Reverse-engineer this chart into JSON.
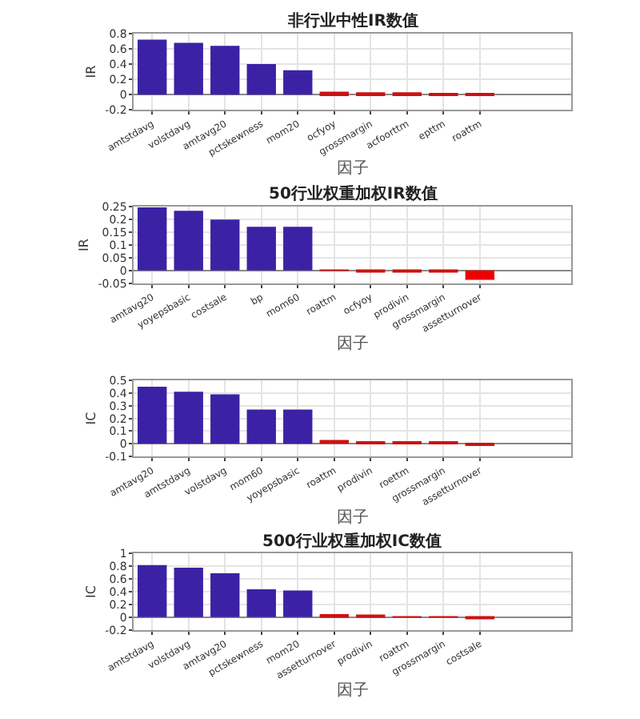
{
  "chart_data": [
    {
      "type": "bar",
      "title": "非行业中性IR数值",
      "xlabel": "因子",
      "ylabel": "IR",
      "categories": [
        "amtstdavg",
        "volstdavg",
        "amtavg20",
        "pctskewness",
        "mom20",
        "ocfyoy",
        "grossmargin",
        "acfoorttm",
        "epttm",
        "roattm"
      ],
      "values": [
        0.72,
        0.68,
        0.64,
        0.4,
        0.32,
        0.04,
        0.03,
        0.03,
        0.02,
        0.01
      ],
      "colors": [
        "#3b22a5",
        "#3b22a5",
        "#3b22a5",
        "#3b22a5",
        "#3b22a5",
        "#cc1111",
        "#cc1111",
        "#cc1111",
        "#cc1111",
        "#cc1111"
      ],
      "ylim": [
        -0.2,
        0.8
      ],
      "yticks": [
        -0.2,
        0,
        0.2,
        0.4,
        0.6,
        0.8
      ],
      "grid": true
    },
    {
      "type": "bar",
      "title": "50行业权重加权IR数值",
      "xlabel": "因子",
      "ylabel": "IR",
      "categories": [
        "amtavg20",
        "yoyepsbasic",
        "costsale",
        "bp",
        "mom60",
        "roattm",
        "ocfyoy",
        "prodivin",
        "grossmargin",
        "assetturnover"
      ],
      "values": [
        0.248,
        0.235,
        0.2,
        0.172,
        0.172,
        0.002,
        -0.005,
        -0.005,
        -0.005,
        -0.037
      ],
      "colors": [
        "#3b22a5",
        "#3b22a5",
        "#3b22a5",
        "#3b22a5",
        "#3b22a5",
        "#cc1111",
        "#cc1111",
        "#cc1111",
        "#cc1111",
        "#ee0000"
      ],
      "ylim": [
        -0.05,
        0.25
      ],
      "yticks": [
        -0.05,
        0,
        0.05,
        0.1,
        0.15,
        0.2,
        0.25
      ],
      "grid": true
    },
    {
      "type": "bar",
      "xlabel": "因子",
      "ylabel": "IC",
      "categories": [
        "amtavg20",
        "amtstdavg",
        "volstdavg",
        "mom60",
        "yoyepsbasic",
        "roattm",
        "prodivin",
        "roettm",
        "grossmargin",
        "assetturnover"
      ],
      "values": [
        0.45,
        0.41,
        0.39,
        0.27,
        0.27,
        0.03,
        0.01,
        0.01,
        0.01,
        -0.01
      ],
      "colors": [
        "#3b22a5",
        "#3b22a5",
        "#3b22a5",
        "#3b22a5",
        "#3b22a5",
        "#cc1111",
        "#cc1111",
        "#cc1111",
        "#cc1111",
        "#cc1111"
      ],
      "ylim": [
        -0.1,
        0.5
      ],
      "yticks": [
        -0.1,
        0,
        0.1,
        0.2,
        0.3,
        0.4,
        0.5
      ],
      "grid": true
    },
    {
      "type": "bar",
      "title": "500行业权重加权IC数值",
      "xlabel": "因子",
      "ylabel": "IC",
      "categories": [
        "amtstdavg",
        "volstdavg",
        "amtavg20",
        "pctskewness",
        "mom20",
        "assetturnover",
        "prodivin",
        "roattm",
        "grossmargin",
        "costsale"
      ],
      "values": [
        0.82,
        0.78,
        0.69,
        0.44,
        0.42,
        0.05,
        0.02,
        0.01,
        0.01,
        -0.01
      ],
      "colors": [
        "#3b22a5",
        "#3b22a5",
        "#3b22a5",
        "#3b22a5",
        "#3b22a5",
        "#cc1111",
        "#cc1111",
        "#cc1111",
        "#cc1111",
        "#cc1111"
      ],
      "ylim": [
        -0.2,
        1
      ],
      "yticks": [
        -0.2,
        0,
        0.2,
        0.4,
        0.6,
        0.8,
        1
      ],
      "grid": true
    }
  ]
}
